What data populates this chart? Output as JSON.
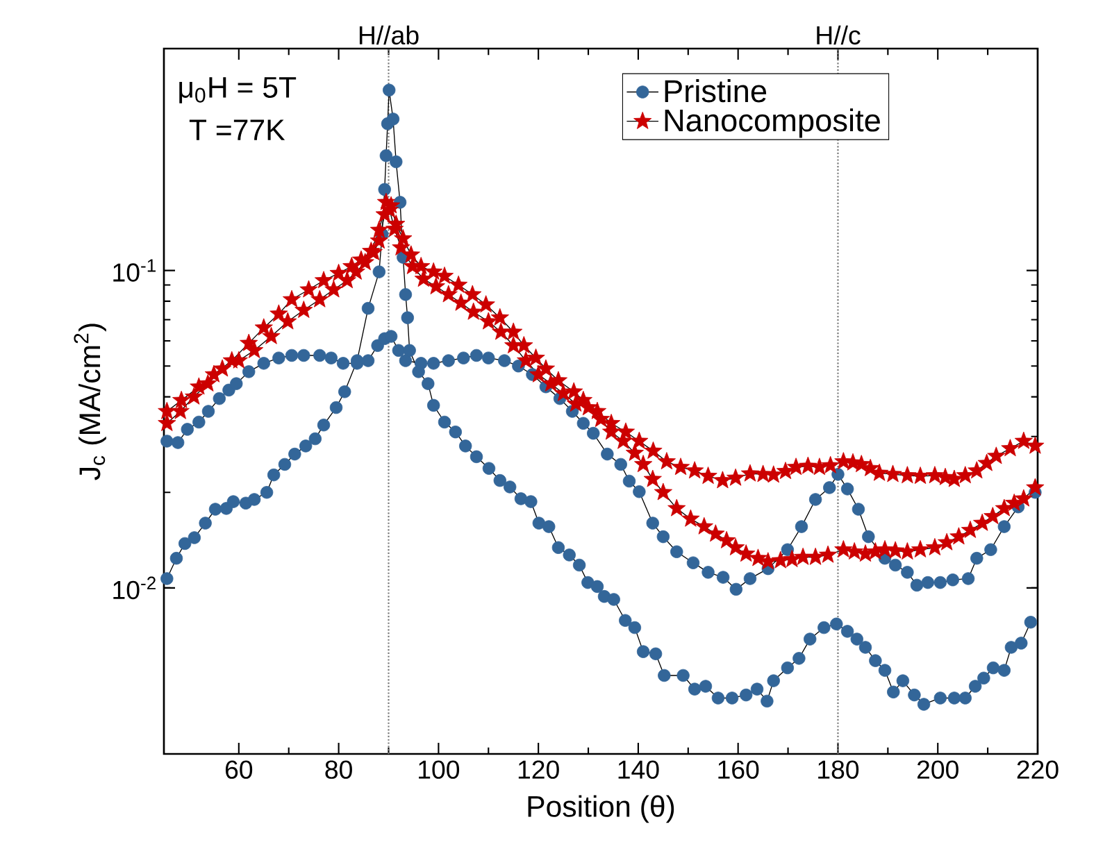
{
  "chart_data": {
    "type": "line",
    "xlabel": "Position (θ)",
    "ylabel": "J$_{c}$ (MA/cm$^{2}$)",
    "log": "y",
    "xlim": [
      45,
      220
    ],
    "xticks": [
      60,
      80,
      100,
      120,
      140,
      160,
      180,
      200,
      220
    ],
    "ylim": [
      0.003,
      0.5
    ],
    "yticks": [
      {
        "value": 0.01,
        "label": "10$^{-2}$"
      },
      {
        "value": 0.1,
        "label": "10$^{-1}$"
      }
    ],
    "grid": false,
    "legend": "top right",
    "annotations": [
      "μ$_{0}$H = 5T",
      "T =77K"
    ],
    "ref_lines": [
      {
        "axis": "x",
        "value": 90,
        "label": "H//ab",
        "color": "#777777",
        "line_style": "dotted"
      },
      {
        "axis": "x",
        "value": 180,
        "label": "H//c",
        "color": "#777777",
        "line_style": "dotted"
      }
    ],
    "series": [
      {
        "name": "Pristine",
        "color": "#336699",
        "marker": "circle",
        "x": [
          45.6,
          47.8,
          49.7,
          52,
          53.9,
          56.1,
          58,
          59.5,
          62,
          65,
          68,
          70.6,
          73,
          76.2,
          78.5,
          80.9,
          83.7,
          85.9,
          87.8,
          89.2,
          90.5,
          92,
          93.4,
          96.5,
          99,
          102,
          105,
          107.6,
          110,
          113.2,
          116,
          118.8,
          121.5,
          124.3,
          126.8,
          129,
          131,
          133.8,
          136.5,
          138.2,
          140.2,
          142.9,
          145,
          147.7,
          151,
          154,
          157,
          159.6,
          162.4,
          166,
          169.9,
          172.7,
          175.5,
          178.3,
          180,
          181.9,
          184.1,
          186.1,
          189.4,
          191.5,
          193.9,
          195.8,
          198,
          200.5,
          203,
          206.1,
          207.8,
          210.6,
          213.3,
          216.1,
          219.5
        ],
        "values": [
          0.029,
          0.0287,
          0.0316,
          0.0333,
          0.036,
          0.0395,
          0.042,
          0.044,
          0.048,
          0.051,
          0.053,
          0.054,
          0.054,
          0.054,
          0.053,
          0.051,
          0.051,
          0.052,
          0.058,
          0.061,
          0.062,
          0.056,
          0.052,
          0.051,
          0.051,
          0.052,
          0.053,
          0.054,
          0.053,
          0.052,
          0.05,
          0.047,
          0.043,
          0.0395,
          0.036,
          0.033,
          0.0307,
          0.0264,
          0.0245,
          0.0217,
          0.0201,
          0.016,
          0.0145,
          0.013,
          0.012,
          0.0112,
          0.0108,
          0.0099,
          0.0107,
          0.0115,
          0.0132,
          0.0156,
          0.019,
          0.0207,
          0.0228,
          0.0205,
          0.0177,
          0.0145,
          0.0124,
          0.0118,
          0.0112,
          0.0102,
          0.0104,
          0.0104,
          0.0106,
          0.0107,
          0.0124,
          0.0132,
          0.0156,
          0.018,
          0.02
        ]
      },
      {
        "color": "#336699",
        "marker": "circle",
        "x": [
          45.6,
          47.5,
          49.2,
          51.1,
          53.3,
          55.3,
          57.5,
          58.9,
          61.4,
          63.1,
          65.6,
          67,
          69.2,
          71.2,
          73.4,
          75.3,
          77,
          79.5,
          81.2,
          83.7,
          85.9,
          88.1,
          88.7,
          89.2,
          89.5,
          89.8,
          90.1,
          90.9,
          91.5,
          92.3,
          92.9,
          93.4,
          93.8,
          94.2,
          96,
          97.9,
          99,
          101.2,
          103.4,
          105.4,
          107.6,
          110.1,
          112.3,
          114.3,
          116.5,
          118.5,
          120.1,
          122.1,
          124,
          126.2,
          128.2,
          129.9,
          131.8,
          133.2,
          135.1,
          137.4,
          139.3,
          141,
          143.5,
          145.2,
          149,
          151.3,
          153.5,
          156,
          158.8,
          161.6,
          163.8,
          165.8,
          167.1,
          169.9,
          172.2,
          174.4,
          177.2,
          179.7,
          181.9,
          183.8,
          185.5,
          187.5,
          189.4,
          191.1,
          193,
          195.3,
          197.2,
          200.5,
          203.3,
          205.5,
          207.5,
          209.2,
          211.1,
          213.3,
          214.7,
          216.7,
          218.6
        ],
        "values": [
          0.0107,
          0.0124,
          0.0138,
          0.0144,
          0.016,
          0.0177,
          0.0178,
          0.0187,
          0.0185,
          0.019,
          0.02,
          0.0227,
          0.0245,
          0.0264,
          0.028,
          0.0295,
          0.0326,
          0.037,
          0.0415,
          0.052,
          0.076,
          0.099,
          0.13,
          0.18,
          0.23,
          0.29,
          0.37,
          0.3,
          0.22,
          0.164,
          0.11,
          0.084,
          0.071,
          0.056,
          0.048,
          0.044,
          0.0376,
          0.0333,
          0.031,
          0.028,
          0.0259,
          0.0238,
          0.0218,
          0.0208,
          0.0191,
          0.0187,
          0.016,
          0.0156,
          0.0134,
          0.0127,
          0.0118,
          0.0104,
          0.0101,
          0.0094,
          0.0092,
          0.0079,
          0.0075,
          0.0063,
          0.0062,
          0.0053,
          0.0053,
          0.0048,
          0.0049,
          0.0045,
          0.0045,
          0.0046,
          0.0048,
          0.0044,
          0.0051,
          0.0056,
          0.006,
          0.0069,
          0.0075,
          0.0077,
          0.0073,
          0.0069,
          0.0065,
          0.0059,
          0.0055,
          0.0047,
          0.0051,
          0.0046,
          0.0043,
          0.0045,
          0.0045,
          0.0045,
          0.0049,
          0.0052,
          0.0056,
          0.0055,
          0.0065,
          0.0067,
          0.0078
        ]
      },
      {
        "name": "Nanocomposite",
        "color": "#cc0000",
        "marker": "star",
        "x": [
          45.6,
          48.5,
          52,
          55,
          58.6,
          62,
          65,
          68,
          70.6,
          74,
          77,
          80,
          82.6,
          84.5,
          86.5,
          88.1,
          89.5,
          90.5,
          91.5,
          92.9,
          94.5,
          96.5,
          99,
          101.2,
          104,
          106.8,
          109.5,
          112.3,
          115,
          117.1,
          119.5,
          121.5,
          124,
          127.1,
          129,
          131.8,
          134.6,
          137.5,
          140.2,
          143,
          145.7,
          148.5,
          151.3,
          154,
          156.9,
          159.5,
          162.4,
          165,
          167.1,
          169.5,
          171.6,
          174,
          176.3,
          178.5,
          181.1,
          183,
          184.7,
          186.5,
          188.3,
          191,
          193.9,
          196.5,
          199.4,
          201.5,
          203.3,
          205.5,
          207.8,
          209.8,
          211.7,
          214.5,
          217.2,
          219.5
        ],
        "values": [
          0.036,
          0.039,
          0.043,
          0.047,
          0.052,
          0.059,
          0.066,
          0.073,
          0.081,
          0.087,
          0.093,
          0.098,
          0.103,
          0.108,
          0.115,
          0.134,
          0.164,
          0.16,
          0.14,
          0.126,
          0.112,
          0.103,
          0.099,
          0.096,
          0.09,
          0.084,
          0.078,
          0.071,
          0.064,
          0.058,
          0.053,
          0.049,
          0.045,
          0.0415,
          0.039,
          0.036,
          0.033,
          0.031,
          0.029,
          0.027,
          0.025,
          0.024,
          0.0234,
          0.0225,
          0.0218,
          0.0222,
          0.0229,
          0.0228,
          0.0227,
          0.0233,
          0.024,
          0.0242,
          0.024,
          0.0243,
          0.025,
          0.0248,
          0.0245,
          0.0238,
          0.023,
          0.0228,
          0.0226,
          0.0225,
          0.0226,
          0.0223,
          0.022,
          0.0226,
          0.0234,
          0.0247,
          0.026,
          0.0275,
          0.029,
          0.028
        ]
      },
      {
        "color": "#cc0000",
        "marker": "star",
        "x": [
          45.6,
          48.3,
          51,
          53.8,
          56.7,
          60,
          63.1,
          66.5,
          69.8,
          73,
          76.2,
          79,
          81.7,
          83.5,
          85.3,
          87,
          88.1,
          89.2,
          90.2,
          91.2,
          92.5,
          94.8,
          97,
          99.5,
          102,
          104.5,
          107,
          110,
          112.5,
          115,
          117.5,
          120,
          122.5,
          125,
          127.5,
          130,
          132.5,
          134.6,
          137,
          139.3,
          141,
          142.9,
          145,
          147.7,
          150.5,
          153.2,
          155.5,
          157.7,
          159.5,
          161.6,
          164,
          166,
          168.5,
          170.8,
          173,
          175.5,
          178,
          181.1,
          183.3,
          185.5,
          187.5,
          189.4,
          191.5,
          193.9,
          196.5,
          199.4,
          201.8,
          204.2,
          206.5,
          208.9,
          211,
          213.3,
          215.3,
          217.2,
          219.5
        ],
        "values": [
          0.033,
          0.036,
          0.04,
          0.044,
          0.049,
          0.052,
          0.056,
          0.062,
          0.069,
          0.075,
          0.081,
          0.087,
          0.093,
          0.099,
          0.106,
          0.114,
          0.124,
          0.15,
          0.155,
          0.135,
          0.118,
          0.103,
          0.094,
          0.089,
          0.084,
          0.079,
          0.074,
          0.069,
          0.064,
          0.058,
          0.052,
          0.047,
          0.044,
          0.041,
          0.038,
          0.037,
          0.034,
          0.031,
          0.029,
          0.0266,
          0.0245,
          0.022,
          0.02,
          0.0178,
          0.0165,
          0.0156,
          0.0148,
          0.0141,
          0.0134,
          0.0128,
          0.0124,
          0.0121,
          0.0122,
          0.0123,
          0.0125,
          0.0125,
          0.0127,
          0.0132,
          0.013,
          0.0128,
          0.013,
          0.0132,
          0.0131,
          0.013,
          0.0132,
          0.0134,
          0.0139,
          0.0145,
          0.0152,
          0.016,
          0.0168,
          0.0178,
          0.0185,
          0.0191,
          0.0207
        ]
      }
    ]
  }
}
